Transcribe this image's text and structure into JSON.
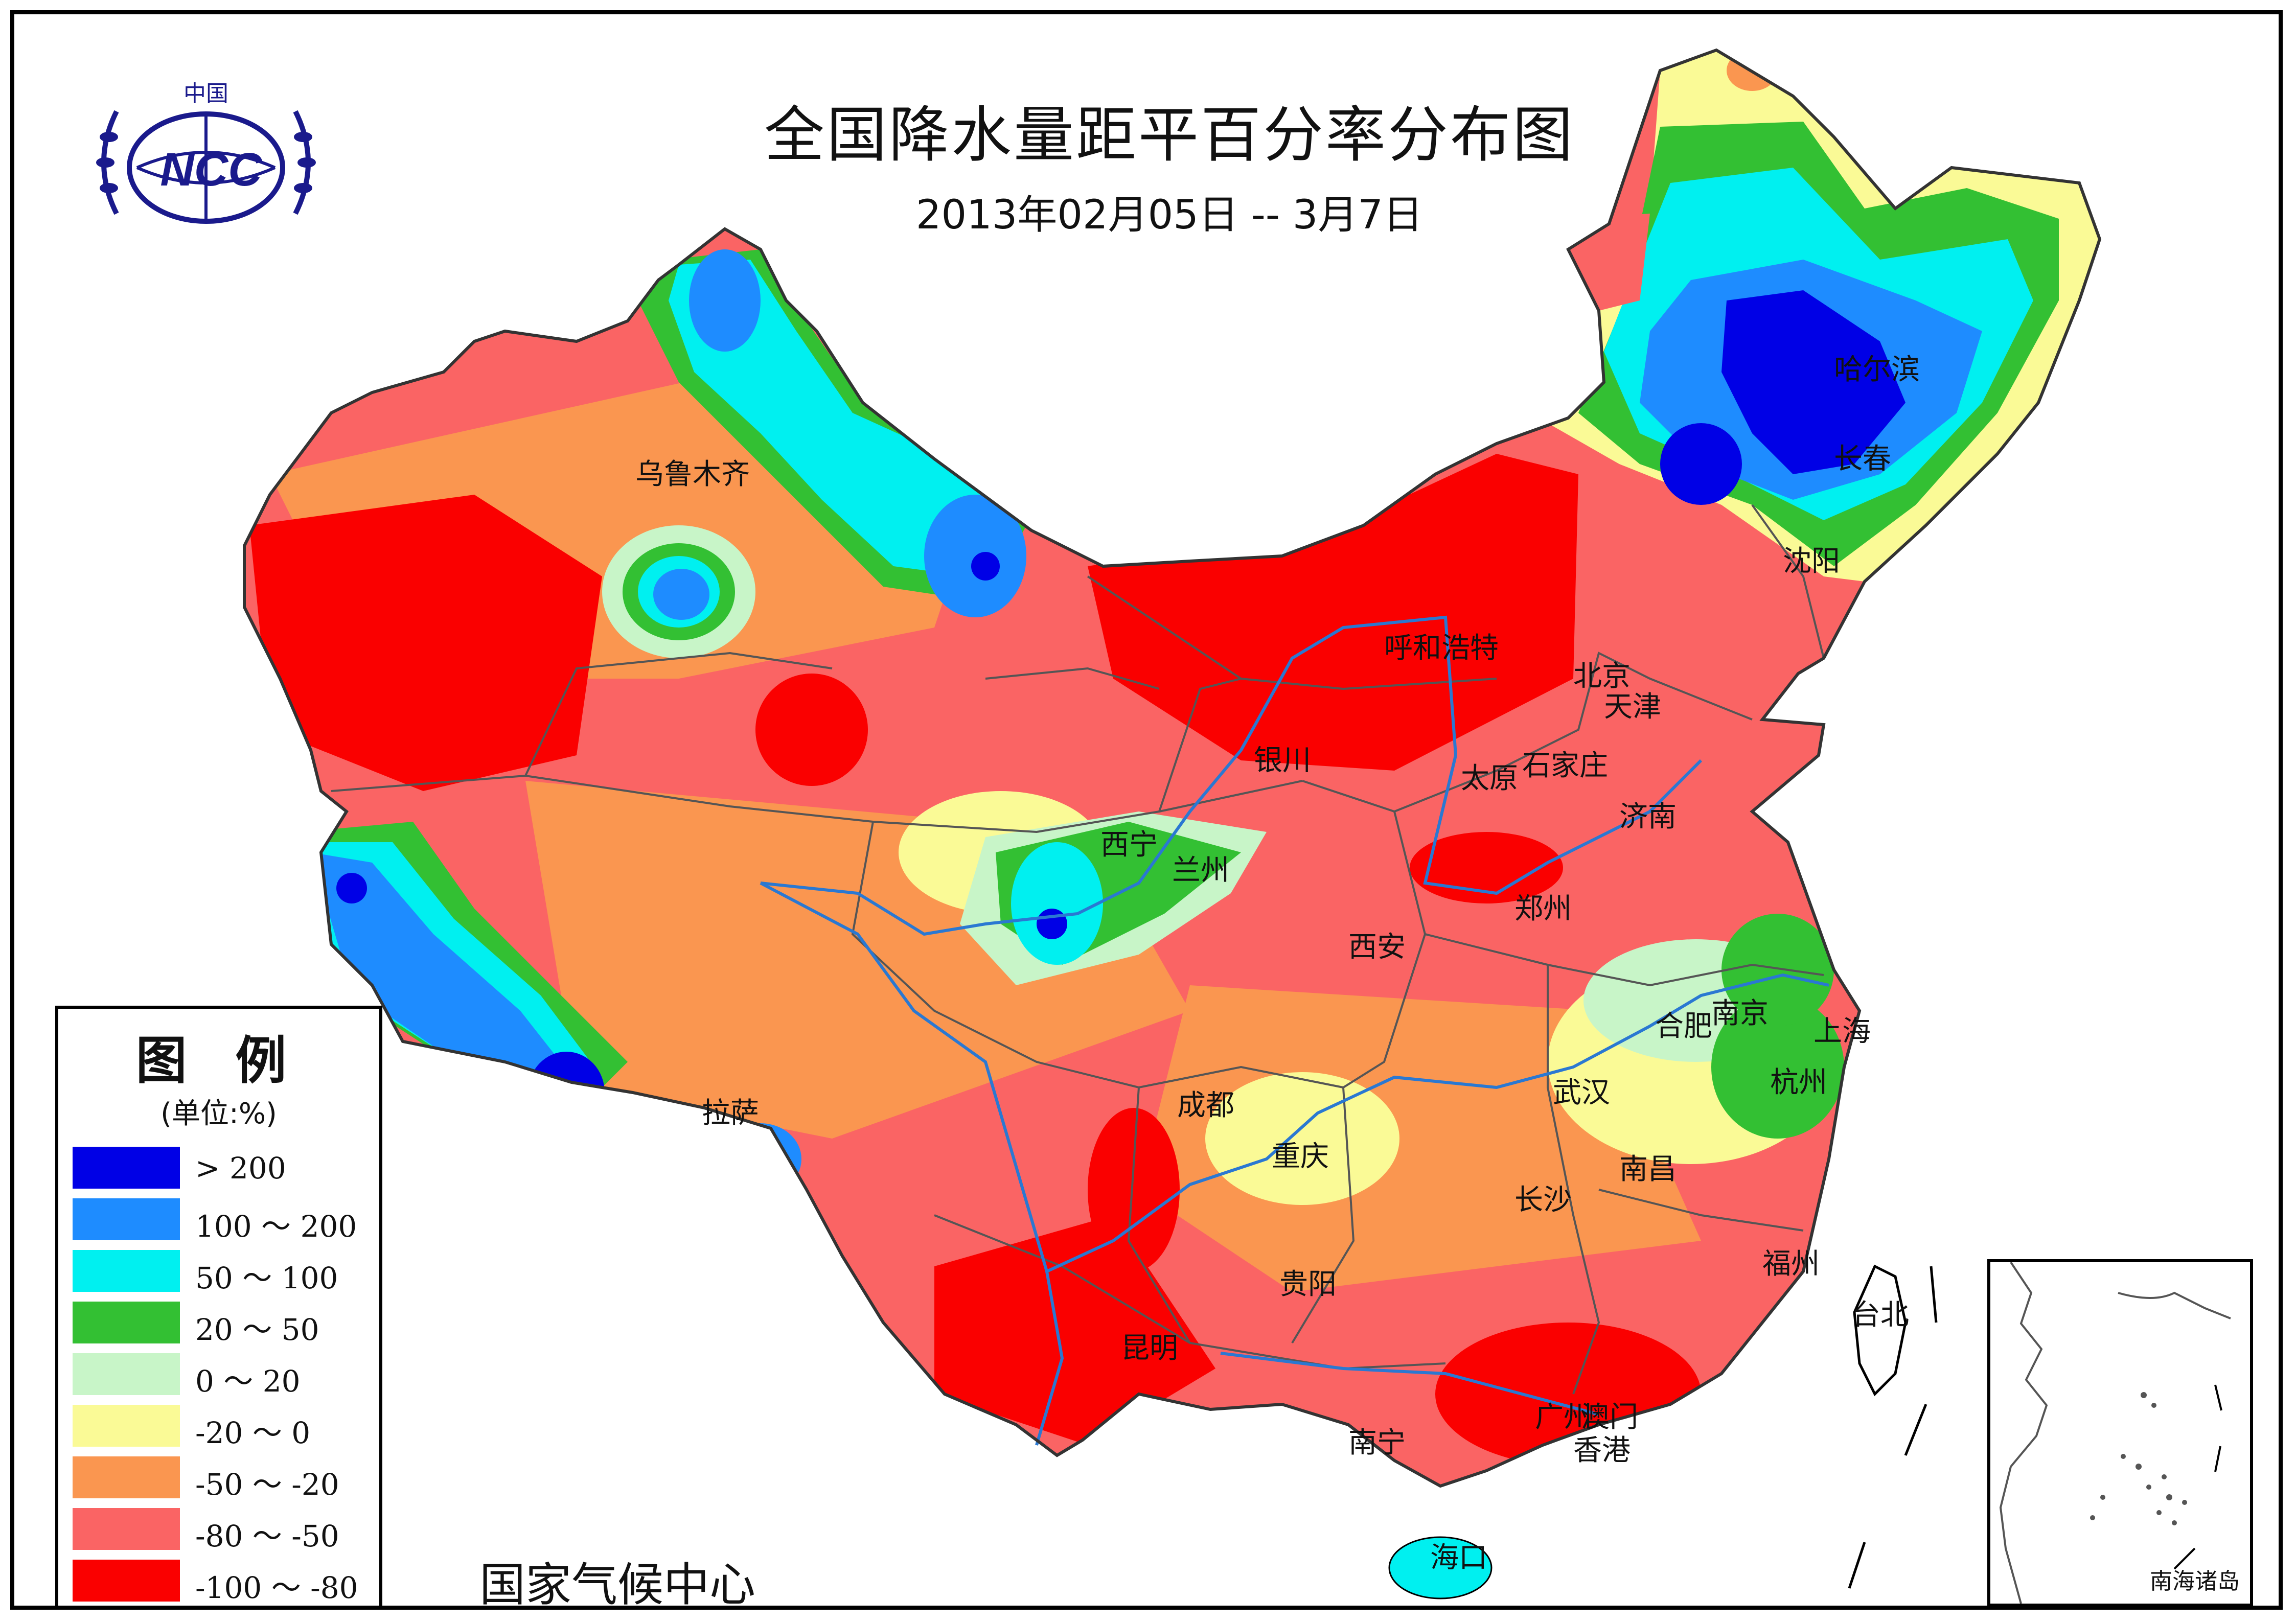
{
  "title": "全国降水量距平百分率分布图",
  "subtitle": "2013年02月05日 -- 3月7日",
  "footer": "国家气候中心",
  "logo": {
    "top_text": "中国",
    "mark_text": "NCC",
    "color": "#1a1a8c"
  },
  "legend": {
    "title": "图 例",
    "unit": "(单位:%)",
    "entries": [
      {
        "label": "> 200",
        "color": "#0000e6"
      },
      {
        "label": "100 ～ 200",
        "color": "#1e8cff"
      },
      {
        "label": "50 ～ 100",
        "color": "#00f0f0"
      },
      {
        "label": "20 ～ 50",
        "color": "#33c033"
      },
      {
        "label": "0 ～ 20",
        "color": "#c8f5c8"
      },
      {
        "label": "-20 ～ 0",
        "color": "#fafa96"
      },
      {
        "label": "-50 ～ -20",
        "color": "#fa9650"
      },
      {
        "label": "-80 ～ -50",
        "color": "#fa6464"
      },
      {
        "label": "-100 ～ -80",
        "color": "#fa0000"
      }
    ]
  },
  "cities": {
    "urumqi": "乌鲁木齐",
    "harbin": "哈尔滨",
    "changchun": "长春",
    "shenyang": "沈阳",
    "hohhot": "呼和浩特",
    "beijing": "北京",
    "tianjin": "天津",
    "yinchuan": "银川",
    "taiyuan": "太原",
    "shijiazhuang": "石家庄",
    "jinan": "济南",
    "xining": "西宁",
    "lanzhou": "兰州",
    "zhengzhou": "郑州",
    "xian": "西安",
    "hefei": "合肥",
    "nanjing": "南京",
    "shanghai": "上海",
    "hangzhou": "杭州",
    "lhasa": "拉萨",
    "chengdu": "成都",
    "wuhan": "武汉",
    "chongqing": "重庆",
    "nanchang": "南昌",
    "changsha": "长沙",
    "fuzhou": "福州",
    "guiyang": "贵阳",
    "taipei": "台北",
    "kunming": "昆明",
    "guangzhou": "广州",
    "macau": "澳门",
    "hongkong": "香港",
    "nanning": "南宁",
    "haikou": "海口"
  },
  "inset_label": "南海诸岛"
}
